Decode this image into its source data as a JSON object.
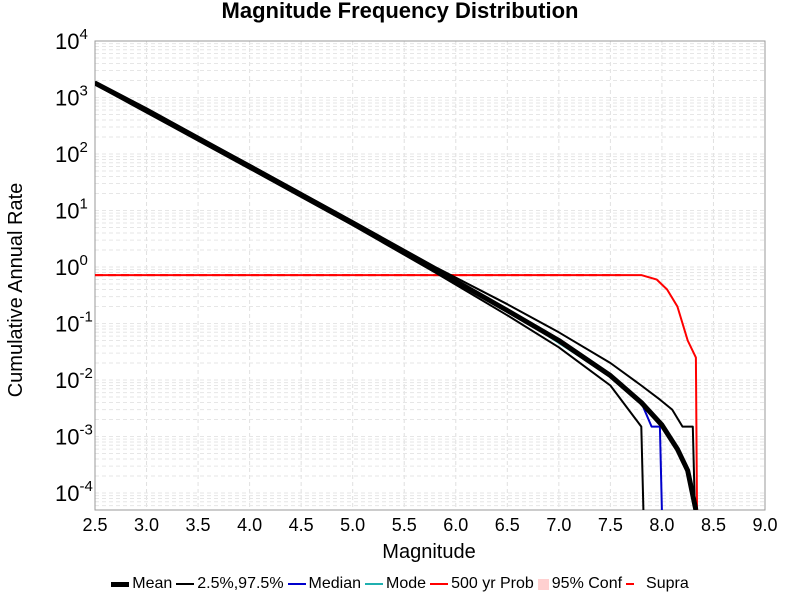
{
  "chart_data": {
    "type": "line",
    "title": "Magnitude Frequency Distribution",
    "xlabel": "Magnitude",
    "ylabel": "Cumulative Annual Rate",
    "xlim": [
      2.5,
      9.0
    ],
    "ylim_log10": [
      -4.3,
      4
    ],
    "y_scale": "log",
    "grid": true,
    "legend_position": "bottom",
    "x_ticks": [
      2.5,
      3.0,
      3.5,
      4.0,
      4.5,
      5.0,
      5.5,
      6.0,
      6.5,
      7.0,
      7.5,
      8.0,
      8.5,
      9.0
    ],
    "x_tick_labels": [
      "2.5",
      "3.0",
      "3.5",
      "4.0",
      "4.5",
      "5.0",
      "5.5",
      "6.0",
      "6.5",
      "7.0",
      "7.5",
      "8.0",
      "8.5",
      "9.0"
    ],
    "y_tick_exponents": [
      -4,
      -3,
      -2,
      -1,
      0,
      1,
      2,
      3,
      4
    ],
    "y_tick_base": "10",
    "series": [
      {
        "name": "Mean",
        "color": "#000000",
        "style": "solid-thick",
        "points": [
          [
            2.5,
            1800
          ],
          [
            3.0,
            600
          ],
          [
            4.0,
            60
          ],
          [
            5.0,
            6
          ],
          [
            5.8,
            0.9
          ],
          [
            6.5,
            0.17
          ],
          [
            7.0,
            0.05
          ],
          [
            7.5,
            0.012
          ],
          [
            7.8,
            0.004
          ],
          [
            8.0,
            0.0016
          ],
          [
            8.15,
            0.0006
          ],
          [
            8.25,
            0.00025
          ],
          [
            8.33,
            5e-05
          ]
        ]
      },
      {
        "name": "2.5%,97.5%",
        "color": "#000000",
        "style": "solid",
        "points": [
          [
            2.5,
            1700
          ],
          [
            4.0,
            55
          ],
          [
            5.0,
            5.5
          ],
          [
            5.8,
            0.8
          ],
          [
            6.5,
            0.14
          ],
          [
            7.0,
            0.038
          ],
          [
            7.5,
            0.008
          ],
          [
            7.8,
            0.0015
          ],
          [
            7.82,
            5e-05
          ]
        ]
      },
      {
        "name": "2.5%,97.5%",
        "color": "#000000",
        "style": "solid",
        "points": [
          [
            2.5,
            1900
          ],
          [
            4.0,
            65
          ],
          [
            5.0,
            6.5
          ],
          [
            5.8,
            1.0
          ],
          [
            6.5,
            0.22
          ],
          [
            7.0,
            0.07
          ],
          [
            7.5,
            0.02
          ],
          [
            7.8,
            0.008
          ],
          [
            7.98,
            0.0045
          ],
          [
            8.1,
            0.003
          ],
          [
            8.2,
            0.0015
          ],
          [
            8.3,
            0.0015
          ],
          [
            8.32,
            5e-05
          ]
        ]
      },
      {
        "name": "Median",
        "color": "#0000cc",
        "style": "solid",
        "points": [
          [
            7.0,
            0.05
          ],
          [
            7.5,
            0.012
          ],
          [
            7.8,
            0.004
          ],
          [
            7.9,
            0.0015
          ],
          [
            7.98,
            0.0015
          ],
          [
            8.0,
            5e-05
          ]
        ]
      },
      {
        "name": "Mode",
        "color": "#1fb0b0",
        "style": "solid",
        "points": [
          [
            6.9,
            0.06
          ],
          [
            7.3,
            0.02
          ],
          [
            7.5,
            0.012
          ]
        ]
      },
      {
        "name": "500 yr Prob",
        "color": "#ff0000",
        "style": "solid",
        "points": [
          [
            2.5,
            0.72
          ],
          [
            7.8,
            0.72
          ],
          [
            7.95,
            0.6
          ],
          [
            8.05,
            0.4
          ],
          [
            8.15,
            0.2
          ],
          [
            8.25,
            0.05
          ],
          [
            8.33,
            0.025
          ],
          [
            8.34,
            5e-05
          ]
        ]
      },
      {
        "name": "Supra",
        "color": "#ff0000",
        "style": "dashed",
        "points": [
          [
            2.5,
            0.72
          ],
          [
            7.6,
            0.72
          ]
        ]
      }
    ],
    "legend": [
      {
        "label": "Mean",
        "color": "#000000",
        "kind": "line-thick"
      },
      {
        "label": "2.5%,97.5%",
        "color": "#000000",
        "kind": "line"
      },
      {
        "label": "Median",
        "color": "#0000cc",
        "kind": "line"
      },
      {
        "label": "Mode",
        "color": "#1fb0b0",
        "kind": "line"
      },
      {
        "label": "500 yr Prob",
        "color": "#ff0000",
        "kind": "line"
      },
      {
        "label": "95% Conf",
        "color": "#ffd0d0",
        "kind": "square"
      },
      {
        "label": "Supra",
        "color": "#ff0000",
        "kind": "dashed"
      }
    ]
  }
}
